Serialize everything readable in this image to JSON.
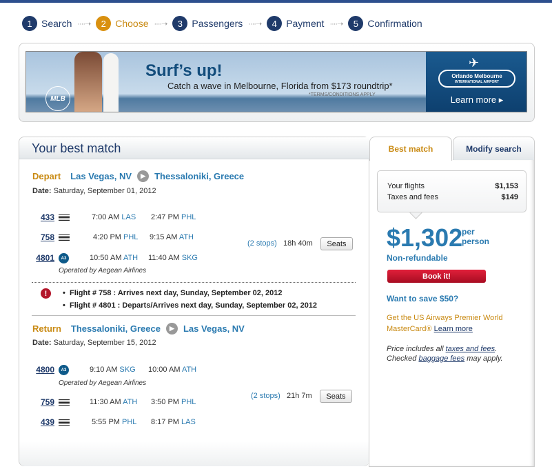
{
  "steps": [
    {
      "num": "1",
      "label": "Search"
    },
    {
      "num": "2",
      "label": "Choose"
    },
    {
      "num": "3",
      "label": "Passengers"
    },
    {
      "num": "4",
      "label": "Payment"
    },
    {
      "num": "5",
      "label": "Confirmation"
    }
  ],
  "banner": {
    "headline": "Surf’s up!",
    "text": "Catch a wave in Melbourne, Florida from $173 roundtrip*",
    "terms": "*TERMS/CONDITIONS APPLY",
    "logo": "MLB",
    "airport": "Orlando Melbourne",
    "airport_sub": "INTERNATIONAL AIRPORT",
    "cta": "Learn more ▸"
  },
  "main": {
    "title": "Your best match"
  },
  "tabs": [
    {
      "label": "Best match",
      "active": true
    },
    {
      "label": "Modify search"
    }
  ],
  "depart": {
    "label": "Depart",
    "from": "Las Vegas, NV",
    "to": "Thessaloniki, Greece",
    "date_label": "Date:",
    "date": " Saturday, September 01, 2012",
    "stops": "(2 stops)",
    "duration": "18h 40m",
    "seats": "Seats",
    "flights": [
      {
        "num": "433",
        "icon": "us-airways-flag-icon",
        "dep": "7:00 AM",
        "dep_ap": "LAS",
        "arr": "2:47 PM",
        "arr_ap": "PHL"
      },
      {
        "num": "758",
        "icon": "us-airways-flag-icon",
        "dep": "4:20 PM",
        "dep_ap": "PHL",
        "arr": "9:15 AM",
        "arr_ap": "ATH"
      },
      {
        "num": "4801",
        "icon": "aegean-a3-icon",
        "dep": "10:50 AM",
        "dep_ap": "ATH",
        "arr": "11:40 AM",
        "arr_ap": "SKG"
      }
    ],
    "operated": "Operated by Aegean Airlines",
    "warnings": [
      "Flight # 758 : Arrives next day, Sunday, September 02, 2012",
      "Flight # 4801 : Departs/Arrives next day, Sunday, September 02, 2012"
    ]
  },
  "return": {
    "label": "Return",
    "from": "Thessaloniki, Greece",
    "to": "Las Vegas, NV",
    "date_label": "Date:",
    "date": " Saturday, September 15, 2012",
    "stops": "(2 stops)",
    "duration": "21h 7m",
    "seats": "Seats",
    "flights": [
      {
        "num": "4800",
        "icon": "aegean-a3-icon",
        "dep": "9:10 AM",
        "dep_ap": "SKG",
        "arr": "10:00 AM",
        "arr_ap": "ATH"
      },
      {
        "num": "759",
        "icon": "us-airways-flag-icon",
        "dep": "11:30 AM",
        "dep_ap": "ATH",
        "arr": "3:50 PM",
        "arr_ap": "PHL"
      },
      {
        "num": "439",
        "icon": "us-airways-flag-icon",
        "dep": "5:55 PM",
        "dep_ap": "PHL",
        "arr": "8:17 PM",
        "arr_ap": "LAS"
      }
    ],
    "operated": "Operated by Aegean Airlines"
  },
  "price": {
    "flights_label": "Your flights",
    "flights": "$1,153",
    "taxes_label": "Taxes and fees",
    "taxes": "$149",
    "total": "$1,302",
    "per1": "per",
    "per2": "person",
    "refund": "Non-refundable",
    "book": "Book it!",
    "save": "Want to save $50?",
    "promo": "Get the US Airways Premier World MasterCard®",
    "promo_link": "Learn more",
    "note1": "Price includes all ",
    "note_link1": "taxes and fees",
    "note2": ".",
    "note3": "Checked ",
    "note_link2": "baggage fees",
    "note4": " may apply."
  },
  "colors": {
    "navy": "#1f3a6a",
    "accent": "#c98a13",
    "link": "#2a7ab0",
    "book": "#c8102e"
  }
}
